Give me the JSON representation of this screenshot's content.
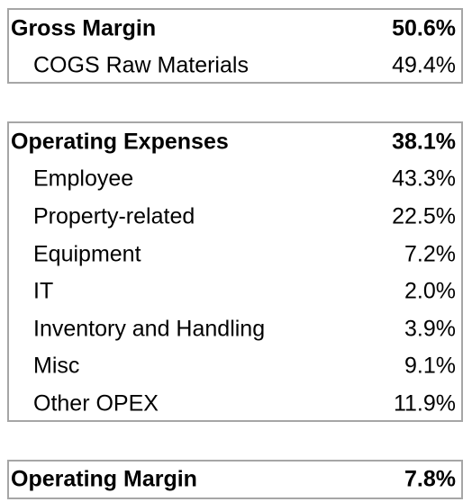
{
  "gross_margin": {
    "label": "Gross Margin",
    "value": "50.6%",
    "items": [
      {
        "label": "COGS Raw Materials",
        "value": "49.4%"
      }
    ]
  },
  "operating_expenses": {
    "label": "Operating Expenses",
    "value": "38.1%",
    "items": [
      {
        "label": "Employee",
        "value": "43.3%"
      },
      {
        "label": "Property-related",
        "value": "22.5%"
      },
      {
        "label": "Equipment",
        "value": "7.2%"
      },
      {
        "label": "IT",
        "value": "2.0%"
      },
      {
        "label": "Inventory and Handling",
        "value": "3.9%"
      },
      {
        "label": "Misc",
        "value": "9.1%"
      },
      {
        "label": "Other OPEX",
        "value": "11.9%"
      }
    ]
  },
  "operating_margin": {
    "label": "Operating Margin",
    "value": "7.8%"
  }
}
